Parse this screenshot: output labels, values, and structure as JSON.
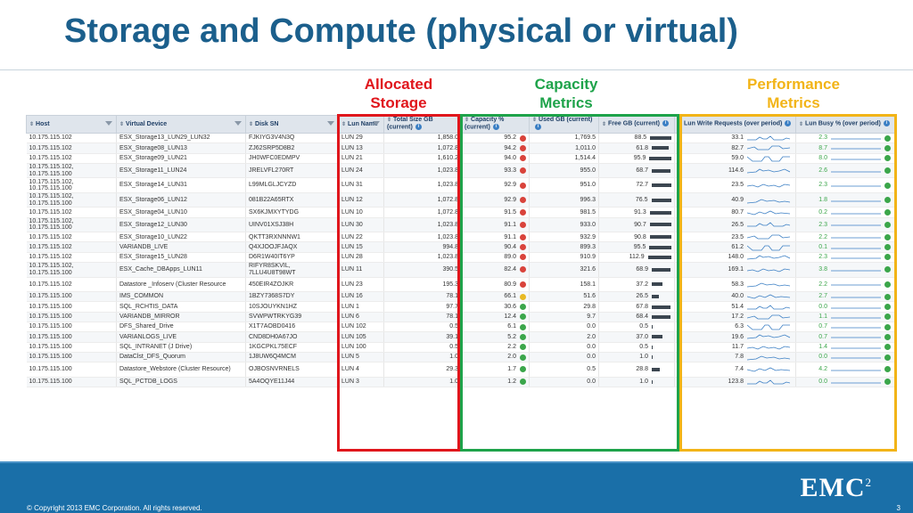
{
  "title": "Storage and Compute (physical or virtual)",
  "groups": {
    "allocated": {
      "line1": "Allocated",
      "line2": "Storage",
      "color": "#e0161c"
    },
    "capacity": {
      "line1": "Capacity",
      "line2": "Metrics",
      "color": "#1ea34a"
    },
    "performance": {
      "line1": "Performance",
      "line2": "Metrics",
      "color": "#f2b418"
    }
  },
  "columns": {
    "host": "Host",
    "vdev": "Virtual Device",
    "disk": "Disk SN",
    "lun": "Lun Name",
    "total": "Total Size GB (current)",
    "cap": "Capacity % (current)",
    "used": "Used GB (current)",
    "free": "Free GB (current)",
    "write": "Lun Write Requests (over period)",
    "busy": "Lun Busy % (over period)"
  },
  "rows": [
    {
      "host": "10.175.115.102",
      "vdev": "ESX_Storage13_LUN29_LUN32",
      "disk": "FJKIYG3V4N3Q",
      "lun": "LUN 29",
      "total": "1,858.0",
      "cap": "95.2",
      "cap_status": "red",
      "used": "1,769.5",
      "free": "88.5",
      "free_bar": 0.72,
      "write": "33.1",
      "busy": "2.3",
      "tall": false
    },
    {
      "host": "10.175.115.102",
      "vdev": "ESX_Storage08_LUN13",
      "disk": "ZJ62SRP5D8B2",
      "lun": "LUN 13",
      "total": "1,072.8",
      "cap": "94.2",
      "cap_status": "red",
      "used": "1,011.0",
      "free": "61.8",
      "free_bar": 0.52,
      "write": "82.7",
      "busy": "8.7",
      "tall": false
    },
    {
      "host": "10.175.115.102",
      "vdev": "ESX_Storage09_LUN21",
      "disk": "JH0WFC0EDMPV",
      "lun": "LUN 21",
      "total": "1,610.2",
      "cap": "94.0",
      "cap_status": "red",
      "used": "1,514.4",
      "free": "95.9",
      "free_bar": 0.78,
      "write": "59.0",
      "busy": "8.0",
      "tall": false
    },
    {
      "host": "10.175.115.102, 10.175.115.100",
      "vdev": "ESX_Storage11_LUN24",
      "disk": "JRELVFL270RT",
      "lun": "LUN 24",
      "total": "1,023.8",
      "cap": "93.3",
      "cap_status": "red",
      "used": "955.0",
      "free": "68.7",
      "free_bar": 0.58,
      "write": "114.6",
      "busy": "2.6",
      "tall": true
    },
    {
      "host": "10.175.115.102, 10.175.115.100",
      "vdev": "ESX_Storage14_LUN31",
      "disk": "L99MLGLJCYZD",
      "lun": "LUN 31",
      "total": "1,023.8",
      "cap": "92.9",
      "cap_status": "red",
      "used": "951.0",
      "free": "72.7",
      "free_bar": 0.6,
      "write": "23.5",
      "busy": "2.3",
      "tall": true
    },
    {
      "host": "10.175.115.102, 10.175.115.100",
      "vdev": "ESX_Storage06_LUN12",
      "disk": "081B22A65RTX",
      "lun": "LUN 12",
      "total": "1,072.8",
      "cap": "92.9",
      "cap_status": "red",
      "used": "996.3",
      "free": "76.5",
      "free_bar": 0.63,
      "write": "40.9",
      "busy": "1.8",
      "tall": true
    },
    {
      "host": "10.175.115.102",
      "vdev": "ESX_Storage04_LUN10",
      "disk": "SX6KJMXYTYDG",
      "lun": "LUN 10",
      "total": "1,072.8",
      "cap": "91.5",
      "cap_status": "red",
      "used": "981.5",
      "free": "91.3",
      "free_bar": 0.75,
      "write": "80.7",
      "busy": "0.2",
      "tall": false
    },
    {
      "host": "10.175.115.102, 10.175.115.100",
      "vdev": "ESX_Storage12_LUN30",
      "disk": "UINV01XSJ38H",
      "lun": "LUN 30",
      "total": "1,023.8",
      "cap": "91.1",
      "cap_status": "red",
      "used": "933.0",
      "free": "90.7",
      "free_bar": 0.75,
      "write": "26.5",
      "busy": "2.3",
      "tall": true
    },
    {
      "host": "10.175.115.102",
      "vdev": "ESX_Storage10_LUN22",
      "disk": "QKTT3RXNNNW1",
      "lun": "LUN 22",
      "total": "1,023.8",
      "cap": "91.1",
      "cap_status": "red",
      "used": "932.9",
      "free": "90.8",
      "free_bar": 0.75,
      "write": "23.5",
      "busy": "2.2",
      "tall": false
    },
    {
      "host": "10.175.115.102",
      "vdev": "VARIANDB_LIVE",
      "disk": "Q4XJOOJFJAQX",
      "lun": "LUN 15",
      "total": "994.8",
      "cap": "90.4",
      "cap_status": "red",
      "used": "899.3",
      "free": "95.5",
      "free_bar": 0.78,
      "write": "61.2",
      "busy": "0.1",
      "tall": false
    },
    {
      "host": "10.175.115.102",
      "vdev": "ESX_Storage15_LUN28",
      "disk": "D6R1W40IT6YP",
      "lun": "LUN 28",
      "total": "1,023.8",
      "cap": "89.0",
      "cap_status": "red",
      "used": "910.9",
      "free": "112.9",
      "free_bar": 0.92,
      "write": "148.0",
      "busy": "2.3",
      "tall": false
    },
    {
      "host": "10.175.115.102, 10.175.115.100",
      "vdev": "ESX_Cache_DBApps_LUN11",
      "disk": "RIFYR8SKVIL, 7LLU4U8T98WT",
      "lun": "LUN 11",
      "total": "390.5",
      "cap": "82.4",
      "cap_status": "red",
      "used": "321.6",
      "free": "68.9",
      "free_bar": 0.58,
      "write": "169.1",
      "busy": "3.8",
      "tall": true
    },
    {
      "host": "10.175.115.102",
      "vdev": "Datastore _Infoserv (Cluster Resource",
      "disk": "450EIR4ZOJKR",
      "lun": "LUN 23",
      "total": "195.3",
      "cap": "80.9",
      "cap_status": "red",
      "used": "158.1",
      "free": "37.2",
      "free_bar": 0.32,
      "write": "58.3",
      "busy": "2.2",
      "tall": true
    },
    {
      "host": "10.175.115.100",
      "vdev": "IMS_COMMON",
      "disk": "1BZY7368S7DY",
      "lun": "LUN 16",
      "total": "78.1",
      "cap": "66.1",
      "cap_status": "yellow",
      "used": "51.6",
      "free": "26.5",
      "free_bar": 0.22,
      "write": "40.0",
      "busy": "2.7",
      "tall": false
    },
    {
      "host": "10.175.115.100",
      "vdev": "SQL_RCHTIS_DATA",
      "disk": "10SJOUYKN1HZ",
      "lun": "LUN 1",
      "total": "97.7",
      "cap": "30.6",
      "cap_status": "green",
      "used": "29.8",
      "free": "67.8",
      "free_bar": 0.57,
      "write": "51.4",
      "busy": "0.0",
      "tall": false
    },
    {
      "host": "10.175.115.100",
      "vdev": "VARIANDB_MIRROR",
      "disk": "SVWPWTRKYG39",
      "lun": "LUN 6",
      "total": "78.1",
      "cap": "12.4",
      "cap_status": "green",
      "used": "9.7",
      "free": "68.4",
      "free_bar": 0.58,
      "write": "17.2",
      "busy": "1.1",
      "tall": false
    },
    {
      "host": "10.175.115.100",
      "vdev": "DFS_Shared_Drive",
      "disk": "X1T7AOBD0416",
      "lun": "LUN 102",
      "total": "0.5",
      "cap": "6.1",
      "cap_status": "green",
      "used": "0.0",
      "free": "0.5",
      "free_bar": 0.0,
      "write": "6.3",
      "busy": "0.7",
      "tall": false
    },
    {
      "host": "10.175.115.100",
      "vdev": "VARIANLOGS_LIVE",
      "disk": "CND8DH0A67JO",
      "lun": "LUN 105",
      "total": "39.1",
      "cap": "5.2",
      "cap_status": "green",
      "used": "2.0",
      "free": "37.0",
      "free_bar": 0.32,
      "write": "19.6",
      "busy": "0.7",
      "tall": false
    },
    {
      "host": "10.175.115.100",
      "vdev": "SQL_INTRANET (J Drive)",
      "disk": "1KGCPKL75ECF",
      "lun": "LUN 100",
      "total": "0.5",
      "cap": "2.2",
      "cap_status": "green",
      "used": "0.0",
      "free": "0.5",
      "free_bar": 0.0,
      "write": "11.7",
      "busy": "1.4",
      "tall": false
    },
    {
      "host": "10.175.115.100",
      "vdev": "DataClst_DFS_Quorum",
      "disk": "1J8UW6Q4MCM",
      "lun": "LUN 5",
      "total": "1.0",
      "cap": "2.0",
      "cap_status": "green",
      "used": "0.0",
      "free": "1.0",
      "free_bar": 0.01,
      "write": "7.8",
      "busy": "0.0",
      "tall": false
    },
    {
      "host": "10.175.115.100",
      "vdev": "Datastore_Webstore (Cluster Resource)",
      "disk": "OJBOSNVRNELS",
      "lun": "LUN 4",
      "total": "29.3",
      "cap": "1.7",
      "cap_status": "green",
      "used": "0.5",
      "free": "28.8",
      "free_bar": 0.25,
      "write": "7.4",
      "busy": "4.2",
      "tall": true
    },
    {
      "host": "10.175.115.100",
      "vdev": "SQL_PCTDB_LOGS",
      "disk": "5A4OQYE11J44",
      "lun": "LUN 3",
      "total": "1.0",
      "cap": "1.2",
      "cap_status": "green",
      "used": "0.0",
      "free": "1.0",
      "free_bar": 0.01,
      "write": "123.8",
      "busy": "0.0",
      "tall": false
    }
  ],
  "footer": {
    "copyright": "© Copyright 2013 EMC Corporation. All rights reserved.",
    "page": "3",
    "logo": "EMC",
    "logo_sup": "2"
  },
  "colors": {
    "title": "#1b5f8c",
    "band": "#1a6fa8",
    "busy_value": "#3ba64a"
  }
}
